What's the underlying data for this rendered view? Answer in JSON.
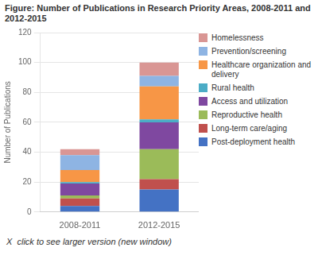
{
  "chart_data": {
    "type": "bar",
    "title": "Figure: Number of Publications in Research Priority Areas, 2008-2011 and 2012-2015",
    "categories": [
      "2008-2011",
      "2012-2015"
    ],
    "series": [
      {
        "name": "Post-deployment health",
        "color": "#4472C4",
        "values": [
          4,
          15
        ]
      },
      {
        "name": "Long-term care/aging",
        "color": "#C0504D",
        "values": [
          5,
          7
        ]
      },
      {
        "name": "Reproductive health",
        "color": "#9BBB59",
        "values": [
          2,
          20
        ]
      },
      {
        "name": "Access and utilization",
        "color": "#7F48A0",
        "values": [
          8,
          18
        ]
      },
      {
        "name": "Rural health",
        "color": "#4BACC6",
        "values": [
          1,
          2
        ]
      },
      {
        "name": "Healthcare organization and\ndelivery",
        "color": "#F79646",
        "values": [
          8,
          22
        ]
      },
      {
        "name": "Prevention/screening",
        "color": "#8EB4E3",
        "values": [
          10,
          7
        ]
      },
      {
        "name": "Homelessness",
        "color": "#D99694",
        "values": [
          4,
          9
        ]
      }
    ],
    "ylabel": "Number of Publications",
    "ylim": [
      0,
      120
    ],
    "yticks": [
      0,
      20,
      40,
      60,
      80,
      100,
      120
    ],
    "stacked": true,
    "grid": true,
    "legend": "right",
    "annotations": [
      "X  click to see larger version (new window)"
    ]
  }
}
